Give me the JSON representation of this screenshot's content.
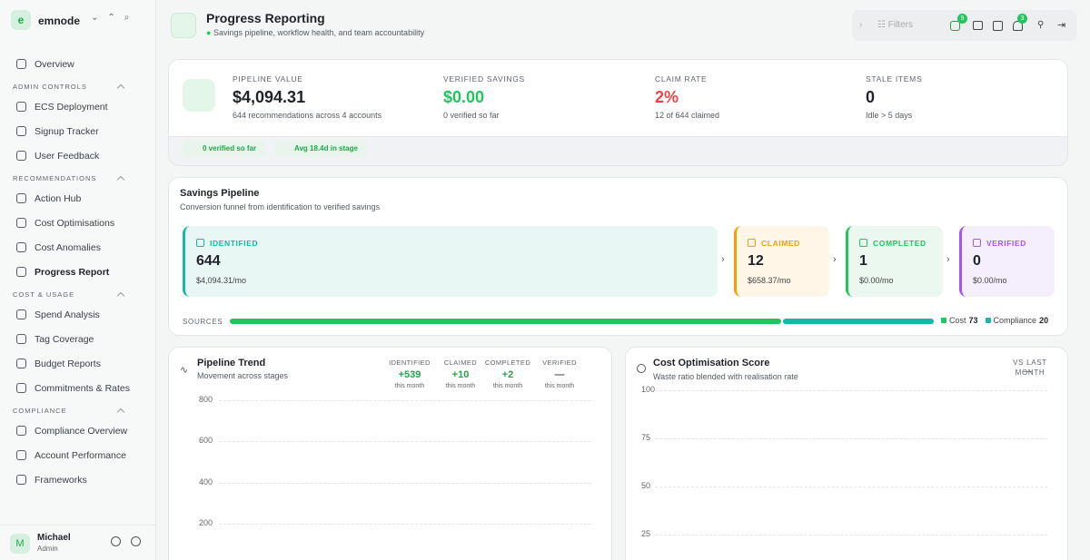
{
  "sidebar": {
    "logo": "e",
    "org": "emnode",
    "top_items": [
      "Overview"
    ],
    "sections": [
      {
        "title": "ADMIN CONTROLS",
        "items": [
          "ECS Deployment",
          "Signup Tracker",
          "User Feedback"
        ]
      },
      {
        "title": "RECOMMENDATIONS",
        "items": [
          "Action Hub",
          "Cost Optimisations",
          "Cost Anomalies",
          "Progress Report"
        ]
      },
      {
        "title": "COST & USAGE",
        "items": [
          "Spend Analysis",
          "Tag Coverage",
          "Budget Reports",
          "Commitments & Rates"
        ]
      },
      {
        "title": "COMPLIANCE",
        "items": [
          "Compliance Overview",
          "Account Performance",
          "Frameworks"
        ]
      }
    ],
    "user": {
      "avatar": "M",
      "name": "Michael",
      "role": "Admin"
    }
  },
  "header": {
    "title": "Progress Reporting",
    "subtitle": "Savings pipeline, workflow health, and team accountability",
    "filters": "Filters",
    "badges": [
      "9",
      "3"
    ]
  },
  "summary": {
    "stats": [
      {
        "label": "PIPELINE VALUE",
        "value": "$4,094.31",
        "sub": "644 recommendations across 4 accounts",
        "color": "#1f2328"
      },
      {
        "label": "VERIFIED SAVINGS",
        "value": "$0.00",
        "sub": "0 verified so far",
        "color": "#22c55e"
      },
      {
        "label": "CLAIM RATE",
        "value": "2%",
        "sub": "12 of 644 claimed",
        "color": "#ef4444"
      },
      {
        "label": "STALE ITEMS",
        "value": "0",
        "sub": "Idle > 5 days",
        "color": "#1f2328"
      }
    ],
    "chips": [
      "0 verified so far",
      "Avg 18.4d in stage"
    ]
  },
  "pipeline": {
    "title": "Savings Pipeline",
    "subtitle": "Conversion funnel from identification to verified savings",
    "stages": [
      {
        "label": "IDENTIFIED",
        "count": "644",
        "amount": "$4,094.31/mo",
        "color": "#14b8a6",
        "bg": "#e8f6f4"
      },
      {
        "label": "CLAIMED",
        "count": "12",
        "amount": "$658.37/mo",
        "color": "#f59e0b",
        "bg": "#fff6e8"
      },
      {
        "label": "COMPLETED",
        "count": "1",
        "amount": "$0.00/mo",
        "color": "#22c55e",
        "bg": "#ebf8ef"
      },
      {
        "label": "VERIFIED",
        "count": "0",
        "amount": "$0.00/mo",
        "color": "#a855f7",
        "bg": "#f5eefd"
      }
    ],
    "sources_label": "SOURCES",
    "sources": [
      {
        "name": "Cost",
        "value": 73,
        "color": "#22c55e"
      },
      {
        "name": "Compliance",
        "value": 20,
        "color": "#14b8a6"
      }
    ]
  },
  "trend": {
    "title": "Pipeline Trend",
    "subtitle": "Movement across stages",
    "stats": [
      {
        "label": "IDENTIFIED",
        "value": "+539",
        "sub": "this month"
      },
      {
        "label": "CLAIMED",
        "value": "+10",
        "sub": "this month"
      },
      {
        "label": "COMPLETED",
        "value": "+2",
        "sub": "this month"
      },
      {
        "label": "VERIFIED",
        "value": "—",
        "sub": "this month"
      }
    ],
    "yticks": [
      800,
      600,
      400,
      200
    ]
  },
  "score": {
    "title": "Cost Optimisation Score",
    "subtitle": "Waste ratio blended with realisation rate",
    "compare": "VS LAST MONTH",
    "delta": "—",
    "yticks": [
      100,
      75,
      50,
      25
    ]
  }
}
